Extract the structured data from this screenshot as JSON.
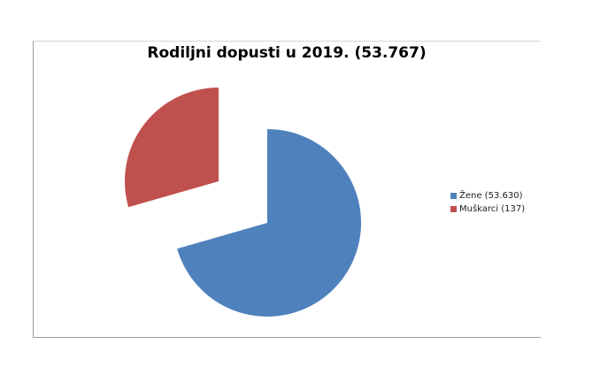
{
  "chart_data": {
    "type": "pie",
    "title": "Rodiljni dopusti u 2019. (53.767)",
    "slices": [
      {
        "label": "Žene (53.630)",
        "value": 53630,
        "color": "#4f81bd"
      },
      {
        "label": "Muškarci (137)",
        "value": 137,
        "color": "#c0504d"
      }
    ],
    "legend_position": "right",
    "exploded": true
  }
}
